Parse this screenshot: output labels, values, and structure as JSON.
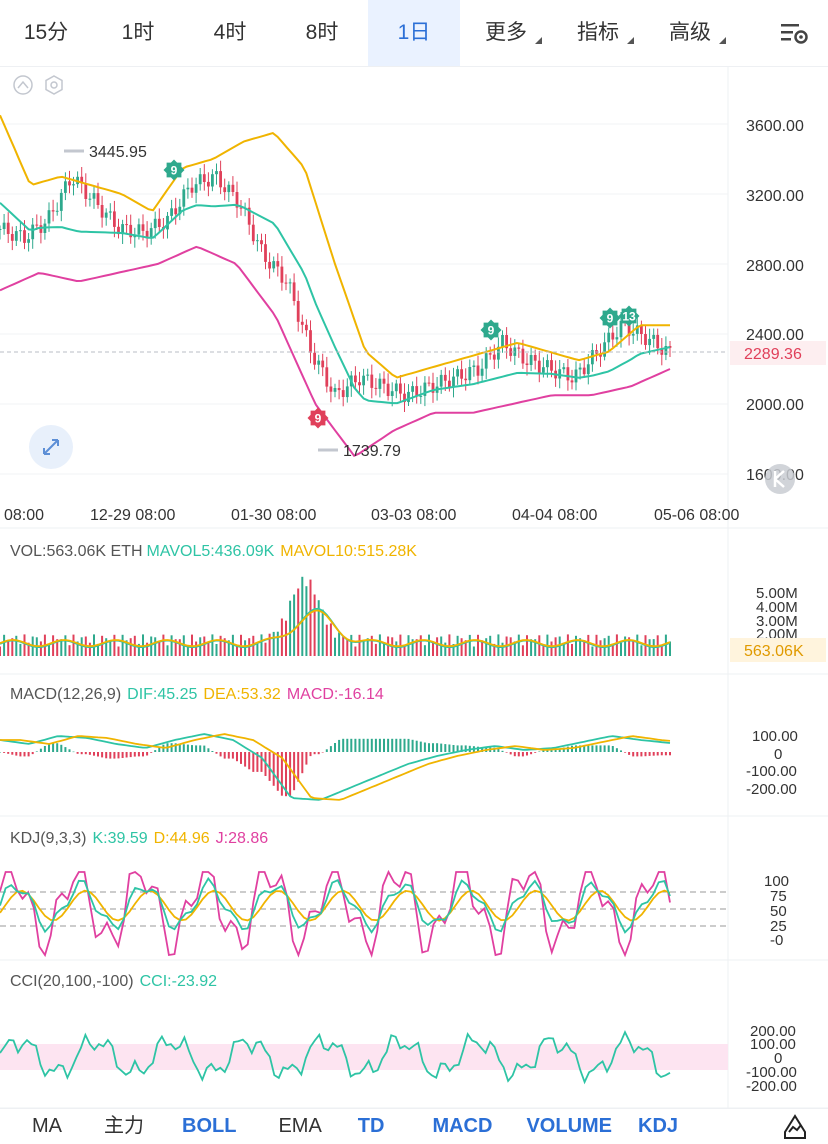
{
  "tabs": [
    "15分",
    "1时",
    "4时",
    "8时",
    "1日",
    "更多",
    "指标",
    "高级"
  ],
  "active_tab": "1日",
  "colors": {
    "up": "#2ea98d",
    "down": "#e0405a",
    "upper": "#f0b400",
    "mid": "#2ec4a5",
    "lower": "#e040a0",
    "accent": "#2b6fd6"
  },
  "main": {
    "price_ticks": [
      "3600.00",
      "3200.00",
      "2800.00",
      "2400.00",
      "2000.00",
      "1600.00"
    ],
    "last_price": "2289.36",
    "high_label": "3445.95",
    "low_label": "1739.79",
    "date_ticks": [
      "08:00",
      "12-29 08:00",
      "01-30 08:00",
      "03-03 08:00",
      "04-04 08:00",
      "05-06 08:00"
    ],
    "td_marks": [
      "9",
      "9",
      "9",
      "9",
      "13"
    ]
  },
  "vol": {
    "label": "VOL:563.06K ETH",
    "mavol5": "MAVOL5:436.09K",
    "mavol10": "MAVOL10:515.28K",
    "ticks": [
      "5.00M",
      "4.00M",
      "3.00M",
      "2.00M"
    ],
    "last": "563.06K"
  },
  "macd": {
    "label": "MACD(12,26,9)",
    "dif": "DIF:45.25",
    "dea": "DEA:53.32",
    "macd": "MACD:-16.14",
    "ticks": [
      "100.00",
      "0",
      "-100.00",
      "-200.00"
    ]
  },
  "kdj": {
    "label": "KDJ(9,3,3)",
    "k": "K:39.59",
    "d": "D:44.96",
    "j": "J:28.86",
    "ticks": [
      "100",
      "75",
      "50",
      "25",
      "-0"
    ]
  },
  "cci": {
    "label": "CCI(20,100,-100)",
    "cci": "CCI:-23.92",
    "ticks": [
      "200.00",
      "100.00",
      "0",
      "-100.00",
      "-200.00"
    ]
  },
  "bottom_tabs": [
    "MA",
    "主力",
    "BOLL",
    "EMA",
    "TD",
    "MACD",
    "VOLUME",
    "KDJ"
  ],
  "chart_data": {
    "type": "candlestick",
    "symbol": "ETH",
    "interval": "1日",
    "x": [
      "08:00",
      "12-29 08:00",
      "01-30 08:00",
      "03-03 08:00",
      "04-04 08:00",
      "05-06 08:00"
    ],
    "close_path": [
      3000,
      2950,
      3050,
      3300,
      3150,
      3000,
      2980,
      3050,
      3250,
      3300,
      3150,
      2850,
      2700,
      2300,
      2050,
      2150,
      2100,
      2050,
      2100,
      2150,
      2200,
      2350,
      2250,
      2200,
      2150,
      2300,
      2450,
      2380,
      2289.36
    ],
    "boll_upper_path": [
      3650,
      3250,
      3300,
      3250,
      3200,
      3100,
      3350,
      3400,
      3500,
      3550,
      3350,
      2800,
      2300,
      2150,
      2200,
      2250,
      2300,
      2350,
      2300,
      2250,
      2300,
      2450,
      2450
    ],
    "boll_lower_path": [
      2650,
      2750,
      2700,
      2750,
      2800,
      2900,
      2800,
      2500,
      2000,
      1700,
      1850,
      1950,
      1950,
      2000,
      2050,
      2050,
      2100,
      2200
    ],
    "high_mark": 3445.95,
    "low_mark": 1739.79,
    "last": 2289.36,
    "ylim": [
      1600,
      3700
    ]
  }
}
